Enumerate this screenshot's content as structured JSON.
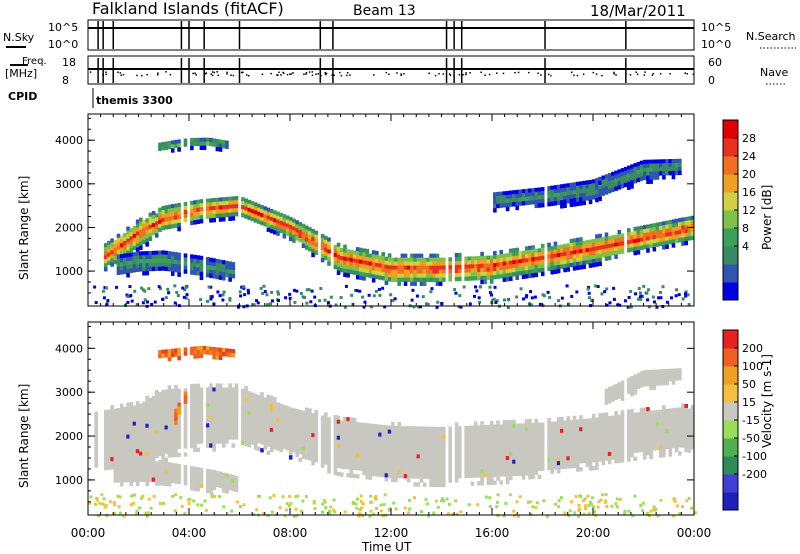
{
  "header": {
    "station": "Falkland Islands (fitACF)",
    "beam": "Beam 13",
    "date": "18/Mar/2011"
  },
  "status_panels": {
    "nsky_label": "N.Sky",
    "nsky_ticks": [
      "10^5",
      "10^0"
    ],
    "nsearch_label": "N.Search",
    "nsearch_ticks": [
      "10^5",
      "10^0"
    ],
    "freq_label": "Freq.",
    "freq_unit": "[MHz]",
    "freq_ticks": [
      "18",
      "8"
    ],
    "nave_label": "Nave",
    "nave_ticks": [
      "60",
      "0"
    ],
    "cpid_label": "CPID",
    "cpid_value": "themis 3300",
    "mode_change_hours": [
      0.4,
      0.6,
      1.0,
      3.7,
      4.0,
      4.6,
      6.0,
      9.2,
      9.7,
      14.2,
      14.5,
      14.8,
      18.1,
      21.3
    ]
  },
  "colorbars": {
    "power": {
      "label": "Power [dB]",
      "ticks": [
        "28",
        "24",
        "20",
        "16",
        "12",
        "8",
        "4"
      ],
      "colors": [
        "#0000e0",
        "#2f54b4",
        "#3a8a64",
        "#3aa05a",
        "#7fc04a",
        "#d0d040",
        "#f0a020",
        "#f07020",
        "#e83020",
        "#e00000"
      ]
    },
    "velocity": {
      "label": "Velocity [m s-1]",
      "ticks": [
        "200",
        "100",
        "50",
        "15",
        "-15",
        "-50",
        "-100",
        "-200"
      ],
      "colors": [
        "#2020c0",
        "#4040d8",
        "#2e8b57",
        "#50b050",
        "#9adf5a",
        "#c8c8c0",
        "#f5c040",
        "#f0a020",
        "#f06020",
        "#e82020"
      ]
    }
  },
  "chart_data": [
    {
      "type": "heatmap",
      "name": "power",
      "ylabel": "Slant Range [km]",
      "ylim": [
        200,
        4600
      ],
      "xlim": [
        0,
        24
      ],
      "yticks": [
        "4000",
        "3000",
        "2000",
        "1000"
      ],
      "bands": [
        {
          "x": [
            0.6,
            2.0,
            3.0,
            4.5,
            6.0,
            8.0,
            10.0,
            12.0,
            14.0,
            16.0,
            18.0,
            20.0,
            22.0,
            23.3,
            24.0
          ],
          "center": [
            1300,
            1850,
            2200,
            2400,
            2500,
            2000,
            1300,
            1050,
            1050,
            1100,
            1300,
            1500,
            1750,
            1900,
            2000
          ],
          "width": [
            600,
            700,
            600,
            500,
            450,
            500,
            650,
            700,
            700,
            700,
            650,
            650,
            600,
            600,
            550
          ],
          "peak_db": 26
        },
        {
          "x": [
            1.2,
            2.0,
            3.0,
            4.5,
            5.8
          ],
          "center": [
            1150,
            1200,
            1250,
            1100,
            1000
          ],
          "width": [
            450,
            500,
            450,
            500,
            400
          ],
          "peak_db": 10
        },
        {
          "x": [
            2.8,
            3.5,
            4.0,
            4.8,
            5.6
          ],
          "center": [
            3850,
            3900,
            3950,
            3950,
            3900
          ],
          "width": [
            180,
            220,
            200,
            220,
            160
          ],
          "peak_db": 14
        },
        {
          "x": [
            16.0,
            18.0,
            20.0,
            22.0,
            23.5
          ],
          "center": [
            2600,
            2700,
            2850,
            3300,
            3400
          ],
          "width": [
            400,
            450,
            500,
            500,
            350
          ],
          "peak_db": 9
        }
      ]
    },
    {
      "type": "heatmap",
      "name": "velocity",
      "ylabel": "Slant Range [km]",
      "xlabel": "Time UT",
      "ylim": [
        200,
        4600
      ],
      "xlim": [
        0,
        24
      ],
      "yticks": [
        "4000",
        "3000",
        "2000",
        "1000"
      ],
      "xticks": [
        "00:00",
        "04:00",
        "08:00",
        "12:00",
        "16:00",
        "20:00",
        "00:00"
      ],
      "xtick_hours": [
        0,
        4,
        8,
        12,
        16,
        20,
        24
      ],
      "bands": [
        {
          "x": [
            0.3,
            2.0,
            3.0,
            4.5,
            6.0,
            8.0,
            10.0,
            12.0,
            14.0,
            16.0,
            18.0,
            20.0,
            22.0,
            23.5,
            24.0
          ],
          "center": [
            1900,
            2000,
            2300,
            2450,
            2500,
            2150,
            1800,
            1650,
            1600,
            1650,
            1750,
            1900,
            2100,
            2200,
            2200
          ],
          "width": [
            1500,
            1600,
            1700,
            1500,
            1400,
            1200,
            1300,
            1350,
            1400,
            1400,
            1300,
            1200,
            1100,
            1100,
            1000
          ],
          "kind": "low"
        },
        {
          "x": [
            1.0,
            3.0,
            5.0,
            6.0
          ],
          "center": [
            1150,
            1150,
            1000,
            900
          ],
          "width": [
            500,
            550,
            450,
            350
          ],
          "kind": "low"
        },
        {
          "x": [
            2.8,
            3.5,
            4.5,
            5.8
          ],
          "center": [
            3880,
            3900,
            3950,
            3900
          ],
          "width": [
            160,
            200,
            220,
            160
          ],
          "kind": "neg"
        },
        {
          "x": [
            3.4,
            3.8,
            4.1
          ],
          "center": [
            2400,
            2800,
            3050
          ],
          "width": [
            300,
            350,
            300
          ],
          "kind": "neg"
        },
        {
          "x": [
            20.5,
            22.0,
            23.5
          ],
          "center": [
            2900,
            3300,
            3400
          ],
          "width": [
            350,
            400,
            300
          ],
          "kind": "low"
        }
      ]
    }
  ]
}
